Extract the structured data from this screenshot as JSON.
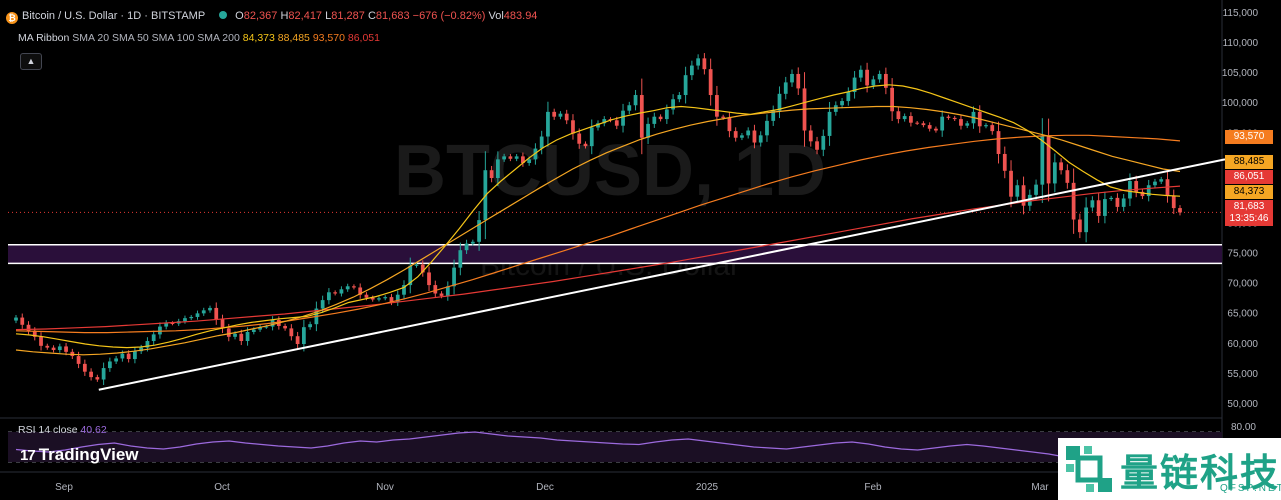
{
  "header": {
    "symbol": "Bitcoin / U.S. Dollar · 1D · BITSTAMP",
    "open_label": "O",
    "open": "82,367",
    "high_label": "H",
    "high": "82,417",
    "low_label": "L",
    "low": "81,287",
    "close_label": "C",
    "close": "81,683",
    "change": "−676 (−0.82%)",
    "vol_label": "Vol",
    "vol": "483.94"
  },
  "ma_ribbon": {
    "label": "MA Ribbon",
    "params": "SMA 20 SMA 50 SMA 100 SMA 200",
    "v1": "84,373",
    "v2": "88,485",
    "v3": "93,570",
    "v4": "86,051"
  },
  "rsi": {
    "label": "RSI 14 close",
    "value": "40.62"
  },
  "watermark": {
    "symbol": "BTCUSD, 1D",
    "subtitle": "Bitcoin / U.S. Dollar"
  },
  "logo": {
    "text": "TradingView"
  },
  "brand": {
    "name": "量链科技",
    "site": "QFSP.NET"
  },
  "price_tags": [
    {
      "value": "93,570",
      "color": "#f57c1f"
    },
    {
      "value": "88,485",
      "color": "#f5a623"
    },
    {
      "value": "86,051",
      "color": "#e53935"
    },
    {
      "value": "84,373",
      "color": "#f5a623"
    },
    {
      "value": "81,683",
      "color": "#e53935",
      "sub": "13:35:46"
    }
  ],
  "chart_data": {
    "type": "candlestick",
    "x_ticks": [
      "Sep",
      "Oct",
      "Nov",
      "Dec",
      "2025",
      "Feb",
      "Mar"
    ],
    "y_ticks": [
      50000,
      55000,
      60000,
      65000,
      70000,
      75000,
      80000,
      85000,
      90000,
      95000,
      100000,
      105000,
      110000,
      115000
    ],
    "y_tick_labels": [
      "50,000",
      "55,000",
      "60,000",
      "65,000",
      "70,000",
      "75,000",
      "80,000",
      "85,000",
      "90,000",
      "95,000",
      "100,000",
      "105,000",
      "110,000",
      "115,000"
    ],
    "ylim": [
      47500,
      117000
    ],
    "candles_close": [
      64200,
      63000,
      62000,
      61000,
      59500,
      59200,
      58800,
      59400,
      58500,
      57800,
      56500,
      55200,
      54300,
      53900,
      55800,
      56900,
      57400,
      58200,
      57300,
      58600,
      59200,
      60300,
      61400,
      62700,
      63300,
      63200,
      63600,
      64100,
      64300,
      64900,
      65400,
      65800,
      63900,
      62400,
      61000,
      61500,
      60300,
      61800,
      62200,
      62600,
      62700,
      63800,
      62800,
      62400,
      61100,
      59800,
      62600,
      63100,
      65700,
      67100,
      68400,
      68200,
      68900,
      69400,
      69200,
      68000,
      67500,
      67200,
      67400,
      67600,
      66800,
      68000,
      69600,
      72800,
      73000,
      71700,
      69600,
      68200,
      67800,
      69400,
      72500,
      75400,
      76500,
      76800,
      80400,
      88700,
      87400,
      90500,
      91000,
      90600,
      91000,
      89900,
      90500,
      92300,
      94300,
      98400,
      97600,
      98100,
      97000,
      94800,
      93100,
      92700,
      95800,
      96500,
      97200,
      97000,
      96100,
      98600,
      99500,
      101200,
      94100,
      96400,
      97600,
      97200,
      98800,
      100500,
      101200,
      104500,
      106100,
      107300,
      105500,
      101200,
      97600,
      97400,
      95200,
      94100,
      94500,
      95300,
      93300,
      94500,
      96900,
      98600,
      101400,
      103300,
      104700,
      102300,
      95300,
      93500,
      92100,
      94400,
      98400,
      99500,
      100200,
      101700,
      104100,
      105400,
      102800,
      103800,
      104700,
      102400,
      98500,
      97200,
      97700,
      96600,
      96500,
      96200,
      95600,
      95300,
      97600,
      97400,
      97200,
      96100,
      96500,
      98400,
      96000,
      96200,
      95200,
      91400,
      88600,
      84300,
      86200,
      82800,
      84600,
      86300,
      94300,
      86500,
      90000,
      88700,
      86600,
      80500,
      78400,
      82500,
      83700,
      81100,
      83900,
      84100,
      82600,
      84000,
      86900,
      85100,
      84400,
      86200,
      86800,
      87200,
      84500,
      82400,
      81683
    ],
    "ma20": [
      61500,
      61300,
      61000,
      60600,
      60200,
      59800,
      59500,
      59300,
      59200,
      59300,
      59600,
      60100,
      60700,
      61400,
      62000,
      62500,
      63000,
      63400,
      63700,
      64000,
      64200,
      64400,
      65000,
      65800,
      66700,
      67200,
      67700,
      68400,
      69200,
      71000,
      73500,
      76200,
      79000,
      82000,
      84800,
      86900,
      88800,
      90700,
      92400,
      93700,
      94700,
      95500,
      96300,
      97100,
      97700,
      98200,
      98600,
      99100,
      99300,
      99100,
      98800,
      98500,
      98200,
      98000,
      98400,
      98800,
      99400,
      100000,
      100600,
      101200,
      101700,
      102300,
      102700,
      102900,
      102700,
      102200,
      101500,
      100700,
      99900,
      99100,
      98300,
      97500,
      96600,
      95300,
      93700,
      91900,
      90000,
      88500,
      87100,
      85900,
      85300,
      85000,
      84700,
      84500,
      84373
    ],
    "ma50": [
      58800,
      58500,
      58300,
      58100,
      58000,
      58100,
      58300,
      58600,
      59000,
      59500,
      60000,
      60600,
      61200,
      61700,
      62300,
      62900,
      63600,
      64400,
      65300,
      66400,
      67600,
      69000,
      70500,
      72100,
      73800,
      75500,
      77200,
      78900,
      80600,
      82300,
      84000,
      85700,
      87300,
      88900,
      90300,
      91600,
      92700,
      93800,
      94700,
      95500,
      96200,
      96800,
      97300,
      97800,
      98100,
      98400,
      98700,
      98900,
      99000,
      99100,
      99200,
      99300,
      99300,
      99100,
      98800,
      98400,
      97900,
      97300,
      96600,
      95900,
      95200,
      94500,
      93700,
      92800,
      91900,
      91000,
      90300,
      89600,
      88900,
      88485
    ],
    "ma100": [
      62000,
      61900,
      61800,
      61700,
      61700,
      61800,
      61900,
      62000,
      62200,
      62500,
      62800,
      63200,
      63700,
      64300,
      64900,
      65600,
      66400,
      67300,
      68300,
      69400,
      70500,
      71700,
      72900,
      74100,
      75300,
      76500,
      77700,
      79000,
      80300,
      81600,
      82900,
      84100,
      85300,
      86500,
      87600,
      88600,
      89500,
      90400,
      91200,
      91900,
      92500,
      93000,
      93500,
      93900,
      94200,
      94400,
      94500,
      94500,
      94300,
      94100,
      93900,
      93570
    ],
    "ma200": [
      62200,
      62300,
      62500,
      62700,
      63000,
      63300,
      63600,
      64000,
      64400,
      64800,
      65300,
      65800,
      66300,
      66900,
      67500,
      68100,
      68800,
      69500,
      70200,
      71000,
      71800,
      72600,
      73400,
      74300,
      75200,
      76100,
      77000,
      77900,
      78800,
      79700,
      80600,
      81400,
      82200,
      82900,
      83600,
      84200,
      84800,
      85300,
      85700,
      86051
    ],
    "rsi14": [
      45,
      42,
      40,
      44,
      50,
      55,
      58,
      52,
      48,
      46,
      50,
      56,
      60,
      62,
      58,
      55,
      52,
      50,
      48,
      52,
      58,
      62,
      60,
      64,
      66,
      70,
      74,
      78,
      80,
      76,
      72,
      70,
      68,
      64,
      62,
      60,
      58,
      56,
      55,
      60,
      64,
      66,
      62,
      58,
      54,
      50,
      48,
      46,
      50,
      54,
      58,
      60,
      56,
      50,
      46,
      44,
      48,
      52,
      55,
      52,
      48,
      44,
      40,
      36,
      30,
      32,
      36,
      40,
      42,
      44,
      38,
      40.62
    ],
    "rsi_ticks": [
      "80.00"
    ],
    "trendlines": [
      {
        "name": "support-trendline",
        "from": [
          0.0682,
          52200
        ],
        "to": [
          0.953,
          90500
        ]
      },
      {
        "name": "zone-top",
        "value": 76300
      },
      {
        "name": "zone-bottom",
        "value": 73200
      }
    ],
    "last_price": 81683
  }
}
